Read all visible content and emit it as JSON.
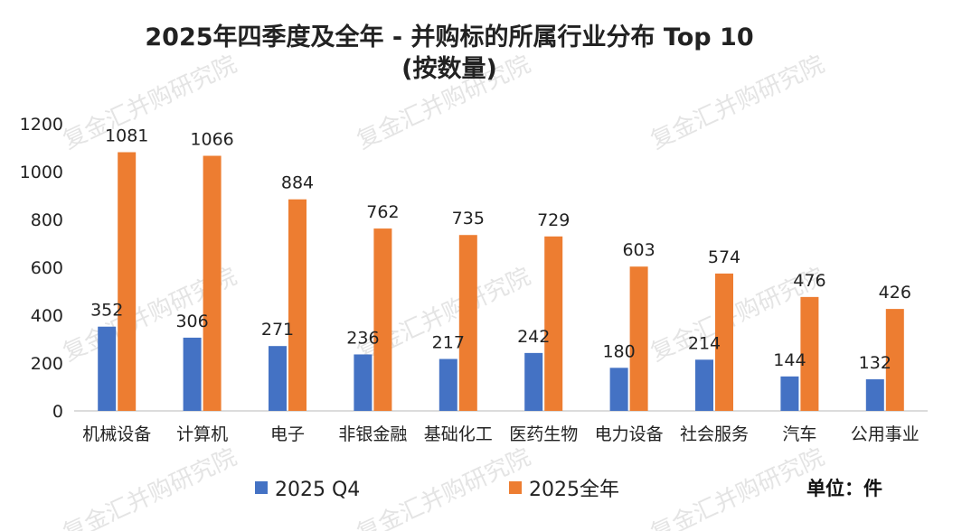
{
  "watermark": "复金汇并购研究院",
  "chart_data": {
    "type": "bar",
    "title": "2025年四季度及全年 - 并购标的所属行业分布 Top 10",
    "subtitle": "(按数量)",
    "categories": [
      "机械设备",
      "计算机",
      "电子",
      "非银金融",
      "基础化工",
      "医药生物",
      "电力设备",
      "社会服务",
      "汽车",
      "公用事业"
    ],
    "series": [
      {
        "name": "2025 Q4",
        "color": "#4472c4",
        "values": [
          352,
          306,
          271,
          236,
          217,
          242,
          180,
          214,
          144,
          132
        ]
      },
      {
        "name": "2025全年",
        "color": "#ed7d31",
        "values": [
          1081,
          1066,
          884,
          762,
          735,
          729,
          603,
          574,
          476,
          426
        ]
      }
    ],
    "ylim": [
      0,
      1200
    ],
    "yticks": [
      0,
      200,
      400,
      600,
      800,
      1000,
      1200
    ],
    "xlabel": "",
    "ylabel": "",
    "legend_position": "bottom",
    "unit_label": "单位：件"
  }
}
